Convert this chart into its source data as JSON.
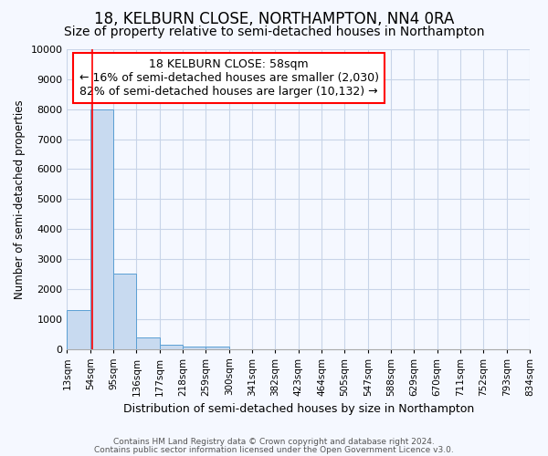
{
  "title": "18, KELBURN CLOSE, NORTHAMPTON, NN4 0RA",
  "subtitle": "Size of property relative to semi-detached houses in Northampton",
  "xlabel": "Distribution of semi-detached houses by size in Northampton",
  "ylabel": "Number of semi-detached properties",
  "footnote1": "Contains HM Land Registry data © Crown copyright and database right 2024.",
  "footnote2": "Contains public sector information licensed under the Open Government Licence v3.0.",
  "bin_labels": [
    "13sqm",
    "54sqm",
    "95sqm",
    "136sqm",
    "177sqm",
    "218sqm",
    "259sqm",
    "300sqm",
    "341sqm",
    "382sqm",
    "423sqm",
    "464sqm",
    "505sqm",
    "547sqm",
    "588sqm",
    "629sqm",
    "670sqm",
    "711sqm",
    "752sqm",
    "793sqm",
    "834sqm"
  ],
  "bar_heights": [
    1300,
    8000,
    2500,
    390,
    150,
    80,
    80,
    0,
    0,
    0,
    0,
    0,
    0,
    0,
    0,
    0,
    0,
    0,
    0,
    0
  ],
  "bar_color": "#c8daf0",
  "bar_edge_color": "#5a9fd4",
  "annotation_text_line1": "18 KELBURN CLOSE: 58sqm",
  "annotation_text_line2": "← 16% of semi-detached houses are smaller (2,030)",
  "annotation_text_line3": "82% of semi-detached houses are larger (10,132) →",
  "ylim": [
    0,
    10000
  ],
  "yticks": [
    0,
    1000,
    2000,
    3000,
    4000,
    5000,
    6000,
    7000,
    8000,
    9000,
    10000
  ],
  "background_color": "#f5f8ff",
  "plot_bg_color": "#f5f8ff",
  "grid_color": "#c8d4e8",
  "title_fontsize": 12,
  "subtitle_fontsize": 10
}
